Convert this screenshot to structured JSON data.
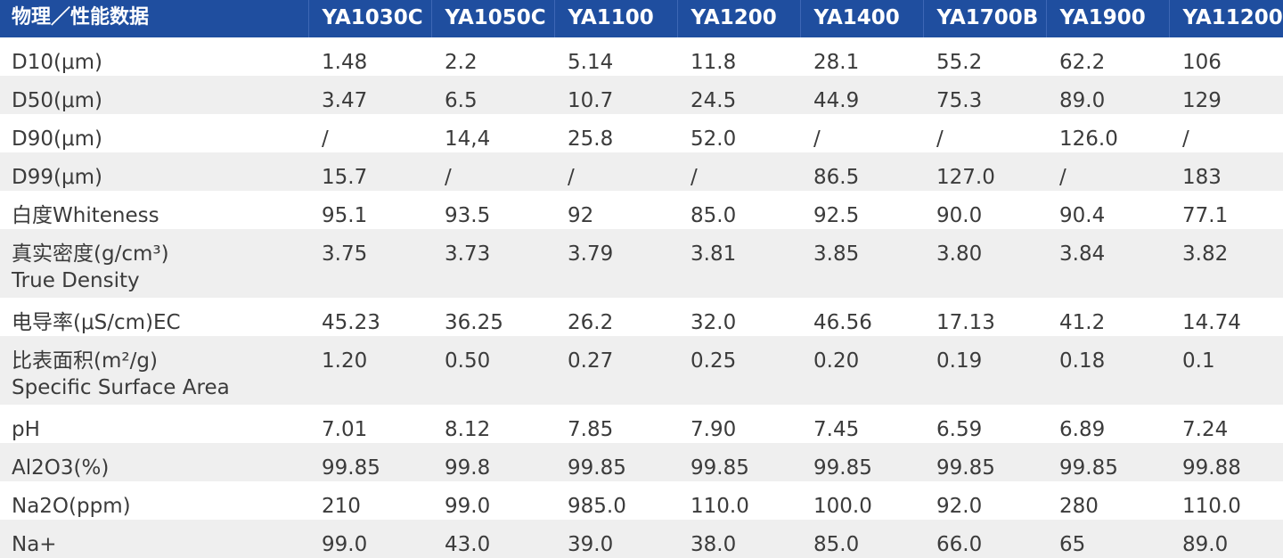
{
  "table": {
    "header": [
      "物理／性能数据",
      "YA1030C",
      "YA1050C",
      "YA1100",
      "YA1200",
      "YA1400",
      "YA1700B",
      "YA1900",
      "YA11200"
    ],
    "rows": [
      {
        "label": "D10(μm)",
        "sublabel": "",
        "values": [
          "1.48",
          "2.2",
          "5.14",
          "11.8",
          "28.1",
          "55.2",
          "62.2",
          "106"
        ]
      },
      {
        "label": "D50(μm)",
        "sublabel": "",
        "values": [
          "3.47",
          "6.5",
          "10.7",
          "24.5",
          "44.9",
          "75.3",
          "89.0",
          "129"
        ]
      },
      {
        "label": "D90(μm)",
        "sublabel": "",
        "values": [
          "/",
          "14,4",
          "25.8",
          "52.0",
          "/",
          "/",
          "126.0",
          "/"
        ]
      },
      {
        "label": "D99(μm)",
        "sublabel": "",
        "values": [
          "15.7",
          "/",
          "/",
          "/",
          "86.5",
          "127.0",
          "/",
          "183"
        ]
      },
      {
        "label": "白度Whiteness",
        "sublabel": "",
        "values": [
          "95.1",
          "93.5",
          "92",
          "85.0",
          "92.5",
          "90.0",
          "90.4",
          "77.1"
        ]
      },
      {
        "label": "真实密度(g/cm³)",
        "sublabel": "True Density",
        "values": [
          "3.75",
          "3.73",
          "3.79",
          "3.81",
          "3.85",
          "3.80",
          "3.84",
          "3.82"
        ]
      },
      {
        "label": "电导率(μS/cm)EC",
        "sublabel": "",
        "values": [
          "45.23",
          "36.25",
          "26.2",
          "32.0",
          "46.56",
          "17.13",
          "41.2",
          "14.74"
        ]
      },
      {
        "label": "比表面积(m²/g)",
        "sublabel": "Specific Surface Area",
        "values": [
          "1.20",
          "0.50",
          "0.27",
          "0.25",
          "0.20",
          "0.19",
          "0.18",
          "0.1"
        ]
      },
      {
        "label": "pH",
        "sublabel": "",
        "values": [
          "7.01",
          "8.12",
          "7.85",
          "7.90",
          "7.45",
          "6.59",
          "6.89",
          "7.24"
        ]
      },
      {
        "label": "Al2O3(%)",
        "sublabel": "",
        "values": [
          "99.85",
          "99.8",
          "99.85",
          "99.85",
          "99.85",
          "99.85",
          "99.85",
          "99.88"
        ]
      },
      {
        "label": "Na2O(ppm)",
        "sublabel": "",
        "values": [
          "210",
          "99.0",
          "985.0",
          "110.0",
          "100.0",
          "92.0",
          "280",
          "110.0"
        ]
      },
      {
        "label": "Na+",
        "sublabel": "",
        "values": [
          "99.0",
          "43.0",
          "39.0",
          "38.0",
          "85.0",
          "66.0",
          "65",
          "89.0"
        ]
      }
    ]
  },
  "colors": {
    "header_bg": "#1f4e9f",
    "header_text": "#ffffff",
    "row_alt_bg": "#efefef",
    "body_text": "#3b3b3b"
  }
}
